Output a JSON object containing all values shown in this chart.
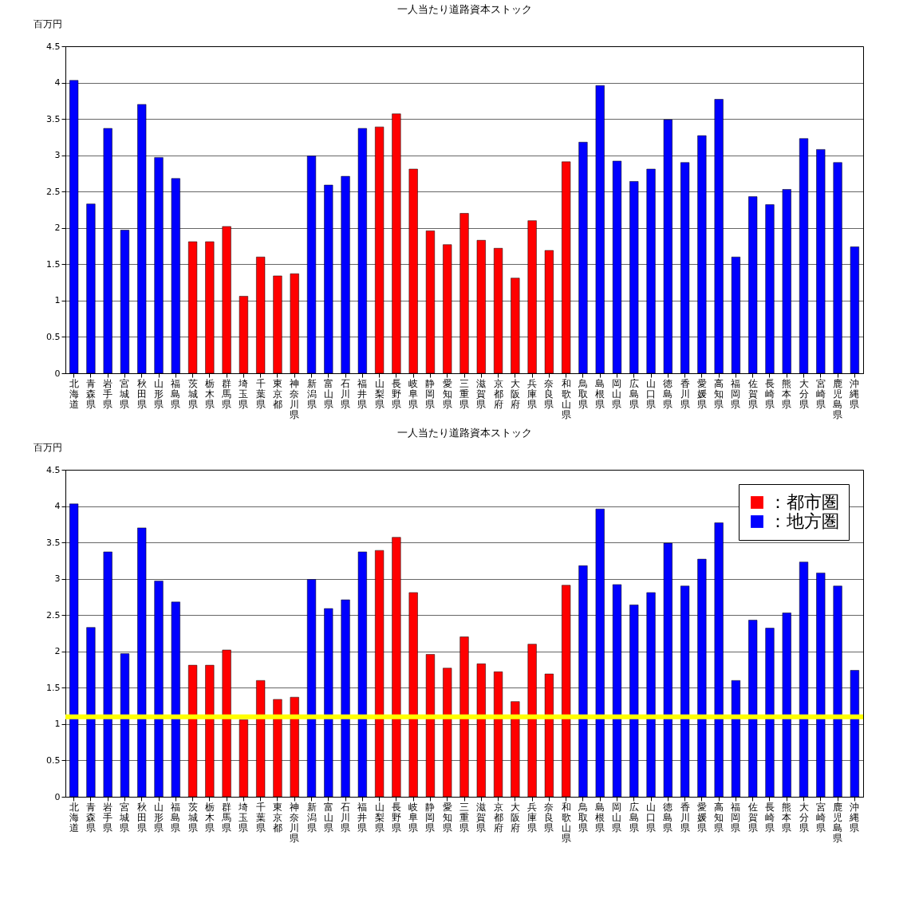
{
  "chart_data": [
    {
      "type": "bar",
      "title": "一人当たり道路資本ストック",
      "ylabel": "百万円",
      "categories": [
        "北海道",
        "青森県",
        "岩手県",
        "宮城県",
        "秋田県",
        "山形県",
        "福島県",
        "茨城県",
        "栃木県",
        "群馬県",
        "埼玉県",
        "千葉県",
        "東京都",
        "神奈川県",
        "新潟県",
        "富山県",
        "石川県",
        "福井県",
        "山梨県",
        "長野県",
        "岐阜県",
        "静岡県",
        "愛知県",
        "三重県",
        "滋賀県",
        "京都府",
        "大阪府",
        "兵庫県",
        "奈良県",
        "和歌山県",
        "鳥取県",
        "島根県",
        "岡山県",
        "広島県",
        "山口県",
        "徳島県",
        "香川県",
        "愛媛県",
        "高知県",
        "福岡県",
        "佐賀県",
        "長崎県",
        "熊本県",
        "大分県",
        "宮崎県",
        "鹿児島県",
        "沖縄県"
      ],
      "stacked": true,
      "series": [
        {
          "color": "#ff0000",
          "values": [
            null,
            null,
            null,
            null,
            null,
            null,
            null,
            1.81,
            1.81,
            2.02,
            1.06,
            1.6,
            1.34,
            1.37,
            null,
            null,
            null,
            null,
            3.39,
            3.57,
            2.81,
            1.96,
            1.77,
            2.2,
            1.83,
            1.72,
            1.31,
            2.1,
            1.69,
            2.91,
            null,
            null,
            null,
            null,
            null,
            null,
            null,
            null,
            null,
            null,
            null,
            null,
            null,
            null,
            null,
            null,
            null
          ]
        },
        {
          "color": "#0000ff",
          "values": [
            4.03,
            2.33,
            3.37,
            1.97,
            3.7,
            2.97,
            2.68,
            null,
            null,
            null,
            null,
            null,
            null,
            null,
            2.99,
            2.59,
            2.71,
            3.37,
            null,
            null,
            null,
            null,
            null,
            null,
            null,
            null,
            null,
            null,
            null,
            null,
            3.18,
            3.96,
            2.92,
            2.64,
            2.81,
            3.49,
            2.9,
            3.27,
            3.77,
            1.6,
            2.43,
            2.32,
            2.53,
            3.23,
            3.08,
            2.9,
            1.74
          ]
        }
      ],
      "ylim": [
        0,
        4.5
      ],
      "yticks": [
        0,
        0.5,
        1,
        1.5,
        2,
        2.5,
        3,
        3.5,
        4,
        4.5
      ],
      "grid": "y"
    },
    {
      "type": "bar",
      "title": "一人当たり道路資本ストック",
      "ylabel": "百万円",
      "categories": [
        "北海道",
        "青森県",
        "岩手県",
        "宮城県",
        "秋田県",
        "山形県",
        "福島県",
        "茨城県",
        "栃木県",
        "群馬県",
        "埼玉県",
        "千葉県",
        "東京都",
        "神奈川県",
        "新潟県",
        "富山県",
        "石川県",
        "福井県",
        "山梨県",
        "長野県",
        "岐阜県",
        "静岡県",
        "愛知県",
        "三重県",
        "滋賀県",
        "京都府",
        "大阪府",
        "兵庫県",
        "奈良県",
        "和歌山県",
        "鳥取県",
        "島根県",
        "岡山県",
        "広島県",
        "山口県",
        "徳島県",
        "香川県",
        "愛媛県",
        "高知県",
        "福岡県",
        "佐賀県",
        "長崎県",
        "熊本県",
        "大分県",
        "宮崎県",
        "鹿児島県",
        "沖縄県"
      ],
      "stacked": true,
      "series": [
        {
          "name": "：都市圏",
          "color": "#ff0000",
          "values": [
            null,
            null,
            null,
            null,
            null,
            null,
            null,
            1.81,
            1.81,
            2.02,
            1.06,
            1.6,
            1.34,
            1.37,
            null,
            null,
            null,
            null,
            3.39,
            3.57,
            2.81,
            1.96,
            1.77,
            2.2,
            1.83,
            1.72,
            1.31,
            2.1,
            1.69,
            2.91,
            null,
            null,
            null,
            null,
            null,
            null,
            null,
            null,
            null,
            null,
            null,
            null,
            null,
            null,
            null,
            null,
            null
          ]
        },
        {
          "name": "：地方圏",
          "color": "#0000ff",
          "values": [
            4.03,
            2.33,
            3.37,
            1.97,
            3.7,
            2.97,
            2.68,
            null,
            null,
            null,
            null,
            null,
            null,
            null,
            2.99,
            2.59,
            2.71,
            3.37,
            null,
            null,
            null,
            null,
            null,
            null,
            null,
            null,
            null,
            null,
            null,
            null,
            3.18,
            3.96,
            2.92,
            2.64,
            2.81,
            3.49,
            2.9,
            3.27,
            3.77,
            1.6,
            2.43,
            2.32,
            2.53,
            3.23,
            3.08,
            2.9,
            1.74
          ]
        }
      ],
      "ylim": [
        0,
        4.5
      ],
      "yticks": [
        0,
        0.5,
        1,
        1.5,
        2,
        2.5,
        3,
        3.5,
        4,
        4.5
      ],
      "grid": "y",
      "legend": "top right",
      "ref_lines": [
        {
          "axis": "y",
          "value": 1.1,
          "color": "#ffff00"
        }
      ]
    }
  ]
}
